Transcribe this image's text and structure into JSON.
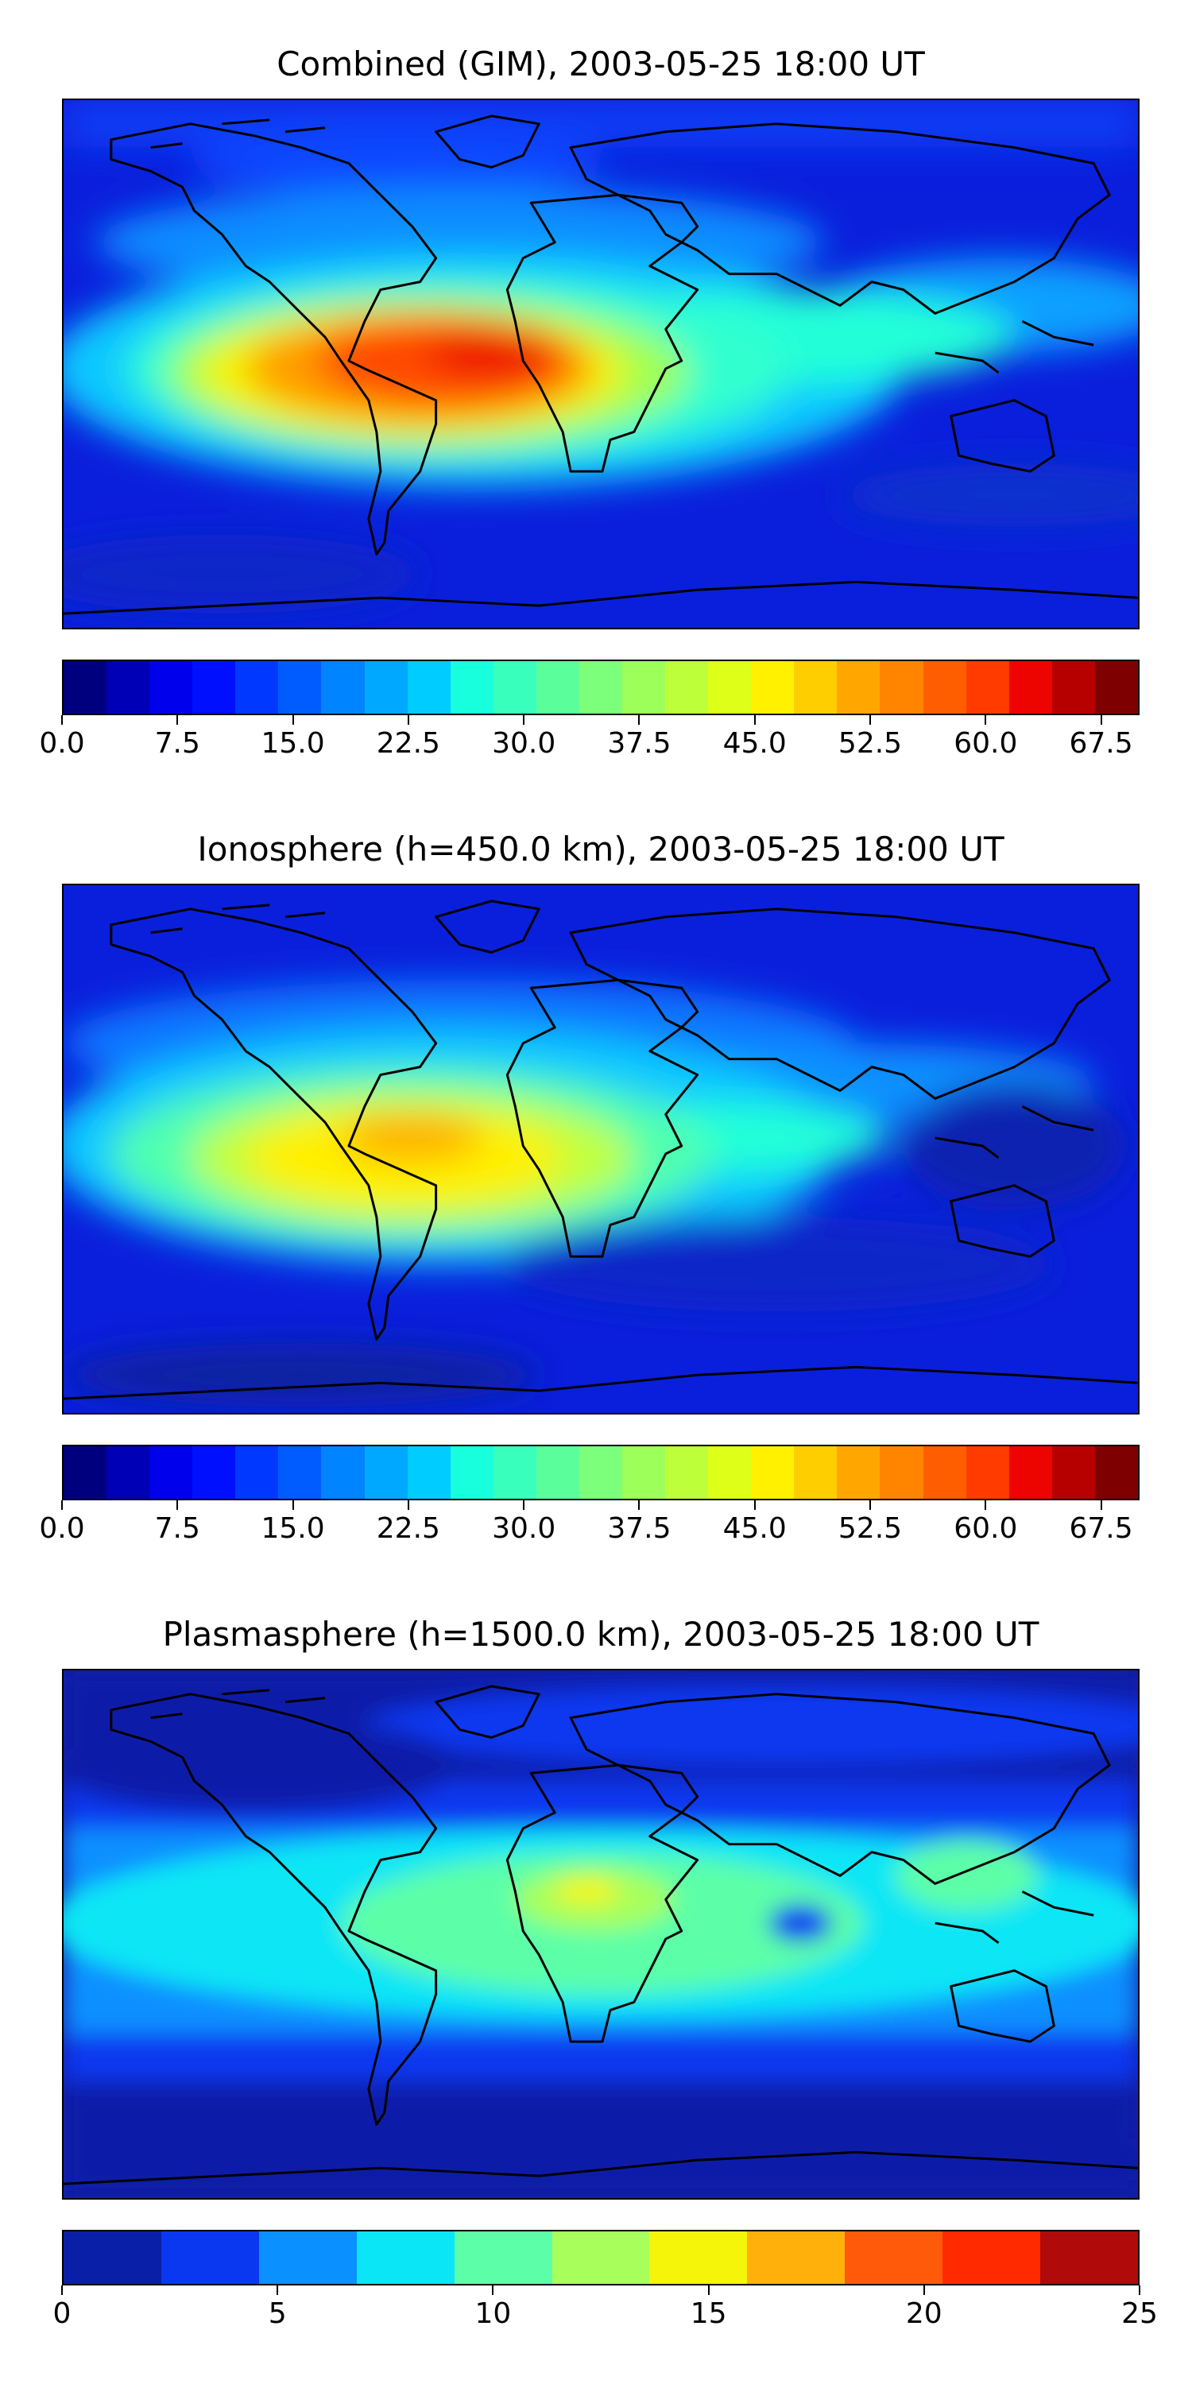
{
  "panels": [
    {
      "title": "Combined (GIM), 2003-05-25 18:00 UT",
      "ticks": [
        "0.0",
        "7.5",
        "15.0",
        "22.5",
        "30.0",
        "37.5",
        "45.0",
        "52.5",
        "60.0",
        "67.5"
      ],
      "colorbar_range": [
        0,
        70
      ],
      "colors": [
        "#00007f",
        "#0000b6",
        "#0000ed",
        "#0010ff",
        "#0038ff",
        "#005cff",
        "#0084ff",
        "#00a8ff",
        "#00ccff",
        "#18ffdd",
        "#39ffbd",
        "#5aff9c",
        "#7cff7a",
        "#9cff5a",
        "#bdff39",
        "#ddff18",
        "#fff100",
        "#ffce00",
        "#ffa700",
        "#ff8500",
        "#ff5e00",
        "#ff3b00",
        "#ed0400",
        "#b60000",
        "#7f0000"
      ]
    },
    {
      "title": "Ionosphere  (h=450.0 km), 2003-05-25 18:00 UT",
      "ticks": [
        "0.0",
        "7.5",
        "15.0",
        "22.5",
        "30.0",
        "37.5",
        "45.0",
        "52.5",
        "60.0",
        "67.5"
      ],
      "colorbar_range": [
        0,
        70
      ],
      "colors": [
        "#00007f",
        "#0000b6",
        "#0000ed",
        "#0010ff",
        "#0038ff",
        "#005cff",
        "#0084ff",
        "#00a8ff",
        "#00ccff",
        "#18ffdd",
        "#39ffbd",
        "#5aff9c",
        "#7cff7a",
        "#9cff5a",
        "#bdff39",
        "#ddff18",
        "#fff100",
        "#ffce00",
        "#ffa700",
        "#ff8500",
        "#ff5e00",
        "#ff3b00",
        "#ed0400",
        "#b60000",
        "#7f0000"
      ]
    },
    {
      "title": "Plasmasphere (h=1500.0 km), 2003-05-25 18:00 UT",
      "ticks": [
        "0",
        "5",
        "10",
        "15",
        "20",
        "25"
      ],
      "colorbar_range": [
        0,
        25
      ],
      "colors": [
        "#0a1fa8",
        "#0a37f0",
        "#0a90ff",
        "#0ae6f5",
        "#5cffa8",
        "#a8ff5c",
        "#f5f50a",
        "#ffb00a",
        "#ff5a0a",
        "#ff2a00",
        "#b00a0a"
      ]
    }
  ]
}
